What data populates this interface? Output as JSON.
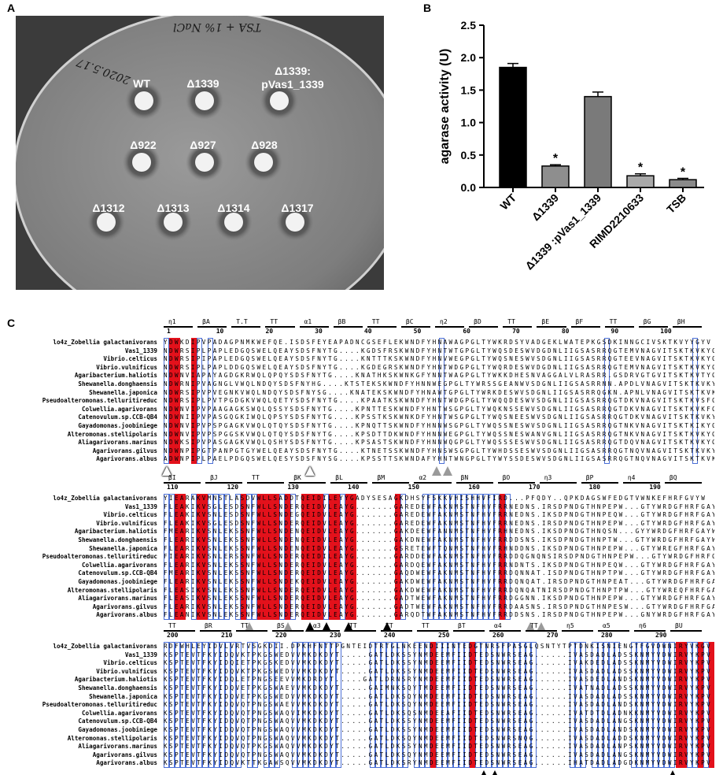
{
  "panel_labels": {
    "a": "A",
    "b": "B",
    "c": "C"
  },
  "panelA": {
    "handwriting": {
      "top": "TSA + 1% NaCl",
      "left": "2020.5.17"
    },
    "strains": [
      "WT",
      "Δ1339",
      "Δ1339:\npVas1_1339",
      "Δ922",
      "Δ927",
      "Δ928",
      "Δ1312",
      "Δ1313",
      "Δ1314",
      "Δ1317"
    ]
  },
  "chart_data": {
    "type": "bar",
    "title": "",
    "ylabel": "agarase activity (U)",
    "xlabel": "",
    "categories": [
      "WT",
      "Δ1339",
      "Δ1339 :pVas1_1339",
      "RIMD2210633",
      "TSB"
    ],
    "values": [
      1.85,
      0.33,
      1.4,
      0.18,
      0.12
    ],
    "errors": [
      0.06,
      0.02,
      0.07,
      0.03,
      0.02
    ],
    "significance": [
      "",
      "*",
      "",
      "*",
      "*"
    ],
    "colors": [
      "#000000",
      "#8e8e8e",
      "#7a7a7a",
      "#a9a9a9",
      "#8a8a8a"
    ],
    "ylim": [
      0,
      2.5
    ],
    "yticks": [
      "0.0",
      "0.5",
      "1.0",
      "1.5",
      "2.0",
      "2.5"
    ]
  },
  "alignment": {
    "blocks": [
      {
        "secondary": [
          "η1",
          "βA",
          "T.T",
          "TT",
          "α1",
          "βB",
          "TT",
          "βC",
          "η2",
          "βD",
          "TT",
          "βE",
          "βF",
          "TT",
          "βG",
          "βH"
        ],
        "ruler": [
          "1",
          "10",
          "20",
          "30",
          "40",
          "50",
          "60",
          "70",
          "80",
          "90",
          "100"
        ],
        "rows": [
          {
            "name": "lo4z_Zobellia galactanivorans",
            "seq": "YDWKDIPVPADAGPNMKWEFQE.ISDSFEYEAPADNCGSEFLEKWNDFYHNAWAGPGLTYWKRDSYVADGEKLWATEPKGSDKINNGCIVSKTKVYYGYV"
          },
          {
            "name": "Vas1_1339",
            "seq": "NDWRSIPLPAPLEDGQSWELQEAYSDSFNYTG....KGDSFRSKWNDFYHNTWTGPGLTYWQSDESWVDGDNLIIGSASRRQGTEMVNAGVITSKTKVKYGFV"
          },
          {
            "name": "Vibrio.celticus",
            "seq": "NDWRSIPIPAPLEDGQSWELQEAYSDSFNYTG....KNTTTKSKWNDFYHNVWEGPGLTYWQSNESWVSDGNLIIGSASRRQGTEEVNAGVITSKTKVKYGFV"
          },
          {
            "name": "Vibrio.vulnificus",
            "seq": "NDWRSIPLPAPLDDGQSWELQEAYSDSFNYTG....KGDEGRSKWNDFYHNTWDGPGLTYWQRDESWVDGDNLIIGSASRRQGTEMVNAGVITSKTKVKYGFV"
          },
          {
            "name": "Agaribacterium.haliotis",
            "seq": "NDWNVIAPAYAGDGKRWQLQPQYSDSFNYTG....KNATHKSKWNKGFYNNTWAGPGLTYWKKDHESNVAGGALVLRASRR.GSDRVGTGVITSKTKVTYGFI"
          },
          {
            "name": "Shewanella.donghaensis",
            "seq": "NDWRNIPVAGNGLVWQLNDQYSDSFNYHG....KTSTEKSKWNDFYHNNWEGPGLTYWRSSGEANWVSDGNLIIGSASRRNN.APDLVNAGVITSKTKVKYGFV"
          },
          {
            "name": "Shewanella.japonica",
            "seq": "NDWRSIPVPVEGNKVWQLNDQYSDSFNYSG....KNATEKSKWNDFYHNAWTGPGLTYWRKDESWVSDGNLIIGSASRRQGKN.APNLVNAGVITSKTKVKYGFV"
          },
          {
            "name": "Pseudoalteromonas.telluritireduc",
            "seq": "NDWRSIPLPVTPGDGKVWQLQETYSDSFNYTG....KPAATKSKWNDFYHNTWDGPGLTYWQQDESWVSDGNLIIGSASRRQGTDKVNAGVITSKTKVSFGFV"
          },
          {
            "name": "Colwellia.agarivorans",
            "seq": "NDWNVIPVPAAGAGKSWQLQSSYSDSFNYTG....KPNTTESKWNDFYHNTWSGPGLTYWQKNSSEWVSDGNLIIGSASRRQGTDKVNAGVITSKTKVKFGFV"
          },
          {
            "name": "Catenovulum.sp.CCB-QB4",
            "seq": "NDWNIIPVPASGQGKIWQLQPSYSDSFNYTG....KPSSTKSKWNKDFYHNTWSGPGLTYWQSNEESWVSDGNLIIGSASRRQGTDKVNAGVITSKTKVKYGFV"
          },
          {
            "name": "Gayadomonas.joobiniege",
            "seq": "NDWNVIPVPSPGAGKVWQLQTQYSDSFNYTG....KPNQTTSKWNDFYHNNWSGPGLTYWQSSNESWVSDGNLIIGSASRRQGTNKVNAGVITSKTKIKYGFV"
          },
          {
            "name": "Alteromonas.stellipolaris",
            "seq": "NDWNVIPVPSPGGSKVWQLQTQYSDSFNYTG....KPSDTTDKWNDFYHNNWEGPGLTYWQSSNESWANVGNLIIGSASRRQGTNKVNAGVITSKTKVKYGFV"
          },
          {
            "name": "Aliagarivorans.marinus",
            "seq": "NDWKSIPVPASGAGKVWQLQSHYSDSFNYTG....KPSASTSKWNDFYHNNWQGPGLTYWQSSSESWVSDGNLIIGSASRRQGTDQVNAGVITSKTKVKYGFV"
          },
          {
            "name": "Agarivorans.gilvus",
            "seq": "NDWNPIPGTPANPGTGYWELQEAYSDSFNYTG....KTNETSSKWNDFYHNSWSGPGLTYWHDSSESWVSDGNLIIGSASRRQGTNQVNAGVITSKTKVKYGFV"
          },
          {
            "name": "Agarivorans.albus",
            "seq": "ADWNPIPLPAELPDGQSWELQESYSDSFNYSG....KPSSTTSKWNDAFYHNTWNGPGLTYWYSSDESWVSDGNLIIGSASRRQGTNQVNAGVITSKTKVKYGFV"
          }
        ],
        "markers": [
          {
            "pos": 1,
            "type": "open"
          },
          {
            "pos": 27,
            "type": "open"
          },
          {
            "pos": 50,
            "type": "grey"
          },
          {
            "pos": 52,
            "type": "grey"
          }
        ]
      },
      {
        "secondary": [
          "βI",
          "βJ",
          "TT",
          "βK",
          "βL",
          "βM",
          "α2",
          "βN",
          "βO",
          "η3",
          "βP",
          "η4",
          "βQ"
        ],
        "ruler": [
          "110",
          "120",
          "130",
          "140",
          "150",
          "160",
          "170",
          "180",
          "190"
        ],
        "rows": [
          {
            "name": "lo4z_Zobellia galactanivorans",
            "seq": "YIEARAKVMNSTLASDVWLLSADDTQEIDILEYYGADYSESAGKDHSYFSKKVHISHHVFIRD...PFQDY..QPKDAGSWFEDGTVWNKEFHRFGVYW"
          },
          {
            "name": "Vas1_1339",
            "seq": "FLEAKIKVSGLESDSNFWLLSNDERQEIDVLEAYG.......GAREDEWFAKNMSTNFHVFRRNEDNS.IRSDPNDGTHNPEPW...GTYWRDGFHRFGAYW"
          },
          {
            "name": "Vibrio.celticus",
            "seq": "FLEAKIKVSNLESDSNFWLLSNDEGQEIDVLEAYG.......GAREDEWFAKNMSTNFHVFRRNEDNS.IKSDPNDGTHNPEQW...GTYWRDGFHRFGAYW"
          },
          {
            "name": "Vibrio.vulnificus",
            "seq": "FLEAKIKVSGLESDSNFWLLSNDERQEIDVLEAYG.......GAREDEWFAKNMSTNFHVFRRNEDNS.IRSDPNDGTHNPEPW...GTYWRDGFHRFGAYW"
          },
          {
            "name": "Agaribacterium.haliotis",
            "seq": "FMEARIKVSNLEKSSNFWLLSNDENQEIDVLEAYG.......GAKDEEWFANNMSTNFHVFRHNEDNS.IKSDPNDGTHNQSN...GYYWRDGFHRFGAYW"
          },
          {
            "name": "Shewanella.donghaensis",
            "seq": "FLEARIKVSNLEKSSNFWLLSNDENQEIDVLEAYG.......GAKDNEWFAKNMSTNFHVFRRDDSNS.IKSDPNDGTHNPTW...GTYWRDGFHRFGAYW"
          },
          {
            "name": "Shewanella.japonica",
            "seq": "FLEARIKVSNLEKSSNFWLLSNDENQEIDVLEAYG.......GSRETEWFTQNMSTNFHVFRHNDDNS.IKSDPNDGTHNPEPW...GTYWREGFHRFGAYW"
          },
          {
            "name": "Pseudoalteromonas.telluritireduc",
            "seq": "FIEARIKVSNLERSSNFWLLSNDERQEIDILEAYG.......GARDDEWFAKNMSTNFHVFRRDDQGNQNSIRSDPNDGTHNPEPW...GTYWRDGFHRFGVYW"
          },
          {
            "name": "Colwellia.agarivorans",
            "seq": "FLEARIKVSNLEKSSNFWLLSNDERQEIDVLEAYG.......GARDQEWFAKNMSTNFHVFRRNDNTS.IKSDPNDGTHNPEQW...GTYWRDGFHRFGAYW"
          },
          {
            "name": "Catenovulum.sp.CCB-QB4",
            "seq": "FMEARIKVSNLEKSSNFWLLSNDERQEIDVLEAYG.......GAQDWEWFAKNMSTNFHVFRRDQNNAT.ISDPNDGTHNPTPW...GTYWRDGFHRFGAYW"
          },
          {
            "name": "Gayadomonas.joobiniege",
            "seq": "FLEARIKVSNLEKSSNFWLLSNDEKQEIDVLEAYG.......GAKDWEWFAKNMSTNFHVFRRDQNQAT.IRSDPNDGTHNPEAT...GTYWRDGFHRFGAYW"
          },
          {
            "name": "Alteromonas.stellipolaris",
            "seq": "FLEASIKVSNLEKSSNFWLLSNDERQEIDVLEAYG.......GAKDWEWFAKNMSTNFHVFRRDQNQATNIRSDPNDGTHNPTPW...GTYWREQFHRFGAYW"
          },
          {
            "name": "Aliagarivorans.marinus",
            "seq": "FLEASIKVSNLEKSSNFWLLSNDERQEIDVLEAYG.......GADTWEWFAKNMSTNFHVFRRDGGNN.IKSDPNDGTHNPEPW...GTYWRDGFHRFGAYW"
          },
          {
            "name": "Agarivorans.gilvus",
            "seq": "FLEARIKVSNLEKSSNFWLLSNDERQEIDVLEAYG.......GADTWEWFAKNMSTNFHVFRRDAASNS.IRSDPNDGTHNPESW...GTYWRDGFHRFGAYW"
          },
          {
            "name": "Agarivorans.albus",
            "seq": "FLEANIKVSNLEKSSNFWLLSNDERQEIDVLEAYG.......GARQDTWFAKNMSTNFHVFRRDDSNS.IRSDPNDGTHNPEPW...GNYWRDGFHRFGAYW"
          }
        ],
        "markers": [
          {
            "pos": 16,
            "type": "grey"
          },
          {
            "pos": 23,
            "type": "grey"
          },
          {
            "pos": 27,
            "type": "filled"
          },
          {
            "pos": 30,
            "type": "filled"
          },
          {
            "pos": 34,
            "type": "filled"
          },
          {
            "pos": 41,
            "type": "filled"
          },
          {
            "pos": 67,
            "type": "grey"
          },
          {
            "pos": 69,
            "type": "grey"
          }
        ]
      },
      {
        "secondary": [
          "TT",
          "βR",
          "TT",
          "βS",
          "α3",
          "TT",
          "TT",
          "TT",
          "βT",
          "α4",
          "TT",
          "η5",
          "α5",
          "η6",
          "βU"
        ],
        "ruler": [
          "200",
          "210",
          "220",
          "230",
          "240",
          "250",
          "260",
          "270",
          "280",
          "290"
        ],
        "rows": [
          {
            "name": "lo4z_Zobellia galactanivorans",
            "seq": "RDFWHLEYIDVLVRTVSGKDII.DPKHFNTTPGNTEIDTRTGLNKEENDIIINTEDGTNRSFPASGLQSNTYTPTDNKISNIENGTFGVDWNIRYVKGV"
          },
          {
            "name": "Vas1_1339",
            "seq": "KSPTEVTFKYIDQVKTPKGSWEDVVMKDKDYT.....GATLDKSSYNMDEEMFIIDTEDSNWRSEAG......IVASDADLADSSKNMYVDWIRVYKPV"
          },
          {
            "name": "Vibrio.celticus",
            "seq": "KSPTEVTFKYIDQIETPKGSKEDVVMKDKDYT.....GATLDKSSYNMDEEMFIIDTEDSNWRSEAG......IVAKDEDLADSSKNMYVDWIRVYKPV"
          },
          {
            "name": "Vibrio.vulnificus",
            "seq": "KSPTEVTFKYIDQVKTPKGSWEDVVMKDKDYT.....GATLDKSSYNMDEEMFIIDTEDSNWRSEAG......IVASDADLADSSKNMYVDWIRVYKPV"
          },
          {
            "name": "Agaribacterium.haliotis",
            "seq": "KSPTEVTFKYIDQLETPNGSEEVVMKDRDYT.....GATLDRNSRYNMDEEMFIIDTEDSNWRSEAG......IVASDEDLANDSKNMYVDWIRVYKPV"
          },
          {
            "name": "Shewanella.donghaensis",
            "seq": "KSPTEVTFKYIDQVETPKGSWAEVVMKDKDYT.....GAIMNKSQYTMDEEMFIIDTEDSNWRSEAG......IVATNADLADSSKNMYVDWIRVYKPV"
          },
          {
            "name": "Shewanella.japonica",
            "seq": "KSPTEVTFKYIDQVETPKGSWEDVVMKDKDYT.....GATLDKSQYNMDEEMFIIDTEDSNWRSEAG......IVASDADLADSSKNMYVDWIRVYKPV"
          },
          {
            "name": "Pseudoalteromonas.telluritireduc",
            "seq": "KSPTEVTFKYIDQVQTPNGSWAEVVMKDKDYT.....GATLDKSQYNMDEEMFIIDTEDSNWRSEAG......IVASDADLANDSKNMYVDWIRVYKPV"
          },
          {
            "name": "Colwellia.agarivorans",
            "seq": "KSPTEVTFKYIDQVQTPNGSWAQVIMKDKDYT.....GATLDKSQSNMDEEAFIIDTEDSNWRSEAG......IVATDTDLADNKKNMYVDWIRVYKPV"
          },
          {
            "name": "Catenovulum.sp.CCB-QB4",
            "seq": "KSPTEVTFKYIDQVQTPNGSWAQVVMKDKDYT.....GATLDKSSYNMDEEMFIIDTEDSNWRSEAG......IVASDADLANGSKNMYVDWIRVYKPV"
          },
          {
            "name": "Gayadomonas.joobiniege",
            "seq": "KSPTEVTFKYIDQVQTPNGSWAQVVMKDKDYT.....GATLDKSSYNMDEEMFIIDTEDSNWRSEAG......IVASDADLANDSKNMYVDWIRVYKPV"
          },
          {
            "name": "Alteromonas.stellipolaris",
            "seq": "KSPTEVTFKYIDQVQTPNGSWAQVVMKDKDYT.....GATLDKSQYNMDEEMFIIDTEDSNWRSNQG......IVASDADLADDSKNMYVDWIRVYKPV"
          },
          {
            "name": "Aliagarivorans.marinus",
            "seq": "KSPTEVTFKYIDQVQTPKGSWAQVVMKDKDYT.....GATLDKSSYNMDEEMFIIDTEDSNWRSEAG......IVASDADLANPSKNMYVDWIRVYKPV"
          },
          {
            "name": "Agarivorans.gilvus",
            "seq": "KSPTEVTFKYIDQVQTPNGSWAQVVMKDKDYT.....GATLDKSQYNMDEEMFIIDTEDSNWRSEAG......IVASDADLANGSKNMYVDWIRVYKPV"
          },
          {
            "name": "Agarivorans.albus",
            "seq": "KSPTEVTFKYIDQVKTTKGAWSQVVMKDKDYT.....GATLDKSRYNMDEEMFIIDTEDSNWRSEAG......IHATDADLADGDKNMYVDWIRVYKPV"
          }
        ],
        "markers": [
          {
            "pos": 58,
            "type": "small"
          },
          {
            "pos": 60,
            "type": "small"
          },
          {
            "pos": 92,
            "type": "small"
          }
        ]
      }
    ]
  }
}
